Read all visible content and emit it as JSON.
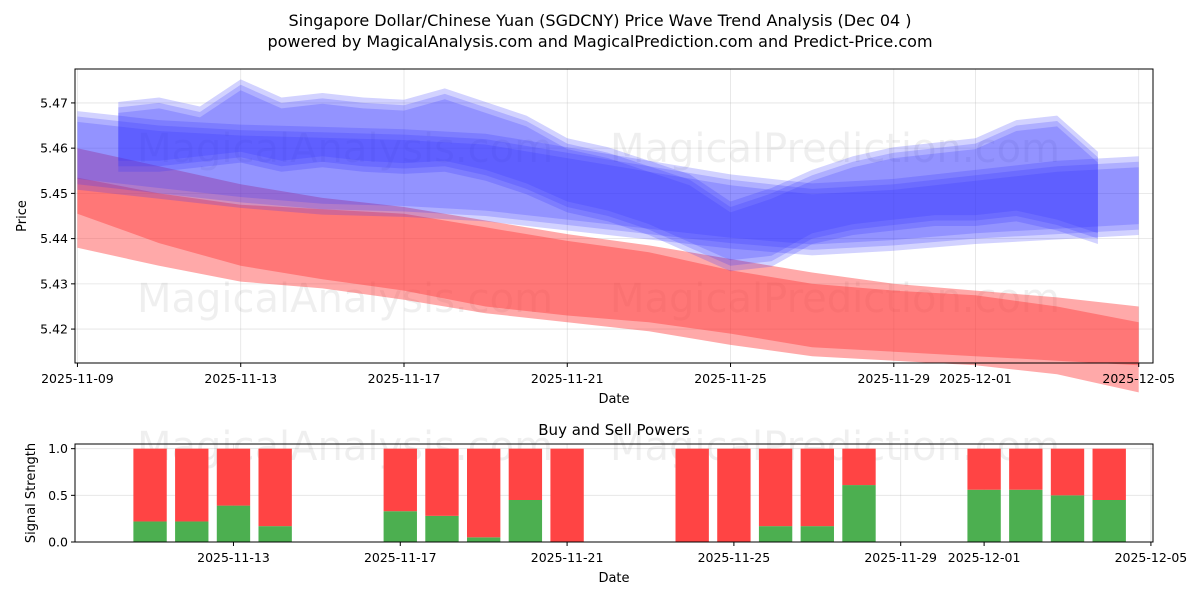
{
  "title_line1": "Singapore Dollar/Chinese Yuan (SGDCNY) Price Wave Trend Analysis (Dec 04 )",
  "title_line2": "powered by MagicalAnalysis.com and MagicalPrediction.com and Predict-Price.com",
  "watermarks": [
    "MagicalAnalysis.com",
    "MagicalPrediction.com"
  ],
  "colors": {
    "blue_band": "#3333ff",
    "red_band": "#ff3333",
    "buy": "#4caf50",
    "sell": "#ff4444",
    "grid": "#b0b0b0"
  },
  "chart_data": [
    {
      "type": "area",
      "title": "",
      "xlabel": "Date",
      "ylabel": "Price",
      "xlim": [
        "2025-11-09",
        "2025-12-05"
      ],
      "ylim": [
        5.4125,
        5.4775
      ],
      "x_ticks": [
        "2025-11-09",
        "2025-11-13",
        "2025-11-17",
        "2025-11-21",
        "2025-11-25",
        "2025-11-29",
        "2025-12-01",
        "2025-12-05"
      ],
      "y_ticks": [
        5.42,
        5.43,
        5.44,
        5.45,
        5.46,
        5.47
      ],
      "grid": true,
      "series": [
        {
          "name": "red trend band (lower)",
          "color": "red",
          "x": [
            "2025-11-09",
            "2025-11-11",
            "2025-11-13",
            "2025-11-15",
            "2025-11-17",
            "2025-11-19",
            "2025-11-21",
            "2025-11-23",
            "2025-11-25",
            "2025-11-27",
            "2025-11-29",
            "2025-12-01",
            "2025-12-03",
            "2025-12-05"
          ],
          "upper": [
            5.4535,
            5.45,
            5.4475,
            5.4465,
            5.4455,
            5.4425,
            5.4395,
            5.437,
            5.433,
            5.43,
            5.4285,
            5.4275,
            5.425,
            5.4215
          ],
          "lower": [
            5.438,
            5.434,
            5.4305,
            5.429,
            5.4265,
            5.4235,
            5.4215,
            5.4195,
            5.4165,
            5.414,
            5.413,
            5.412,
            5.41,
            5.406
          ]
        },
        {
          "name": "red trend band (upper)",
          "color": "red",
          "x": [
            "2025-11-09",
            "2025-11-11",
            "2025-11-13",
            "2025-11-15",
            "2025-11-17",
            "2025-11-19",
            "2025-11-21",
            "2025-11-23",
            "2025-11-25",
            "2025-11-27",
            "2025-11-29",
            "2025-12-01",
            "2025-12-03",
            "2025-12-05"
          ],
          "upper": [
            5.46,
            5.456,
            5.452,
            5.449,
            5.447,
            5.444,
            5.441,
            5.4385,
            5.4355,
            5.4325,
            5.43,
            5.4285,
            5.427,
            5.425
          ],
          "lower": [
            5.4455,
            5.439,
            5.434,
            5.431,
            5.4285,
            5.425,
            5.423,
            5.4215,
            5.419,
            5.416,
            5.415,
            5.414,
            5.413,
            5.412
          ]
        },
        {
          "name": "blue trend band (main)",
          "color": "blue",
          "x": [
            "2025-11-09",
            "2025-11-11",
            "2025-11-13",
            "2025-11-15",
            "2025-11-17",
            "2025-11-19",
            "2025-11-21",
            "2025-11-23",
            "2025-11-25",
            "2025-11-27",
            "2025-11-29",
            "2025-12-01",
            "2025-12-03",
            "2025-12-05"
          ],
          "upper": [
            5.467,
            5.465,
            5.464,
            5.4635,
            5.463,
            5.462,
            5.459,
            5.456,
            5.453,
            5.451,
            5.452,
            5.454,
            5.456,
            5.457
          ],
          "lower": [
            5.452,
            5.45,
            5.448,
            5.4465,
            5.446,
            5.445,
            5.443,
            5.441,
            5.439,
            5.4375,
            5.4385,
            5.44,
            5.441,
            5.442
          ]
        },
        {
          "name": "blue wave band",
          "color": "blue",
          "x": [
            "2025-11-10",
            "2025-11-11",
            "2025-11-12",
            "2025-11-13",
            "2025-11-14",
            "2025-11-15",
            "2025-11-16",
            "2025-11-17",
            "2025-11-18",
            "2025-11-19",
            "2025-11-20",
            "2025-11-21",
            "2025-11-22",
            "2025-11-23",
            "2025-11-24",
            "2025-11-25",
            "2025-11-26",
            "2025-11-27",
            "2025-11-28",
            "2025-11-29",
            "2025-11-30",
            "2025-12-01",
            "2025-12-02",
            "2025-12-03",
            "2025-12-04"
          ],
          "upper": [
            5.469,
            5.47,
            5.468,
            5.474,
            5.47,
            5.471,
            5.47,
            5.4695,
            5.472,
            5.469,
            5.466,
            5.461,
            5.459,
            5.456,
            5.453,
            5.447,
            5.45,
            5.454,
            5.457,
            5.459,
            5.46,
            5.461,
            5.465,
            5.466,
            5.458
          ],
          "lower": [
            5.456,
            5.456,
            5.457,
            5.458,
            5.456,
            5.457,
            5.456,
            5.4555,
            5.456,
            5.454,
            5.451,
            5.447,
            5.445,
            5.442,
            5.438,
            5.434,
            5.435,
            5.44,
            5.442,
            5.443,
            5.444,
            5.444,
            5.445,
            5.443,
            5.44
          ]
        }
      ]
    },
    {
      "type": "bar",
      "stacked": true,
      "title": "Buy and Sell Powers",
      "xlabel": "Date",
      "ylabel": "Signal Strength",
      "xlim": [
        "2025-11-09",
        "2025-12-05"
      ],
      "ylim": [
        0,
        1.05
      ],
      "x_ticks": [
        "2025-11-13",
        "2025-11-17",
        "2025-11-21",
        "2025-11-25",
        "2025-11-29",
        "2025-12-01",
        "2025-12-05"
      ],
      "y_ticks": [
        "0.0",
        "0.5",
        "1.0"
      ],
      "grid": true,
      "dates": [
        "2025-11-11",
        "2025-11-12",
        "2025-11-13",
        "2025-11-14",
        "2025-11-17",
        "2025-11-18",
        "2025-11-19",
        "2025-11-20",
        "2025-11-21",
        "2025-11-24",
        "2025-11-25",
        "2025-11-26",
        "2025-11-27",
        "2025-11-28",
        "2025-12-01",
        "2025-12-02",
        "2025-12-03",
        "2025-12-04"
      ],
      "series": [
        {
          "name": "Buy",
          "color": "#4caf50",
          "values": [
            0.22,
            0.22,
            0.39,
            0.17,
            0.33,
            0.28,
            0.05,
            0.45,
            0.0,
            0.0,
            0.0,
            0.17,
            0.17,
            0.61,
            0.56,
            0.56,
            0.5,
            0.45
          ]
        },
        {
          "name": "Sell",
          "color": "#ff4444",
          "values": [
            0.78,
            0.78,
            0.61,
            0.83,
            0.67,
            0.72,
            0.95,
            0.55,
            1.0,
            1.0,
            1.0,
            0.83,
            0.83,
            0.39,
            0.44,
            0.44,
            0.5,
            0.55
          ]
        }
      ]
    }
  ]
}
